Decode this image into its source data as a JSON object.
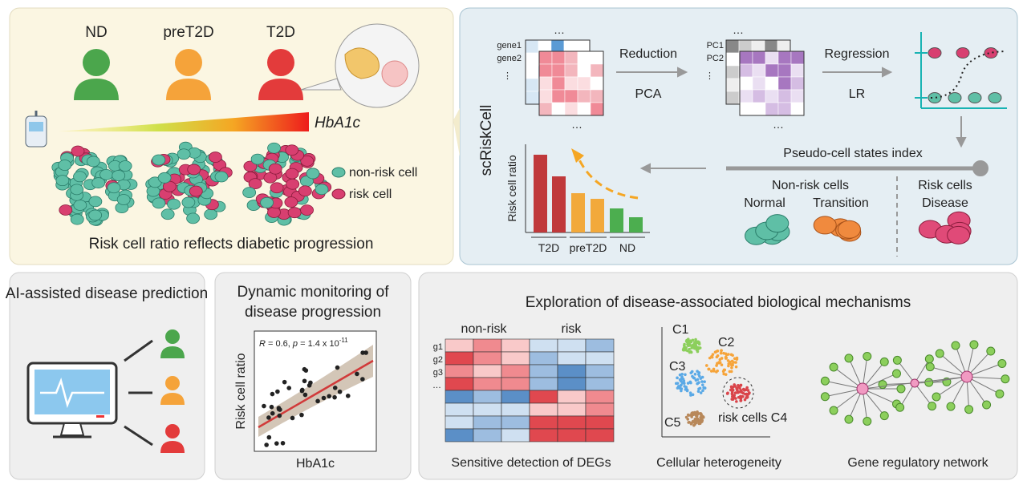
{
  "top_left": {
    "groups": [
      "ND",
      "preT2D",
      "T2D"
    ],
    "gradient_label": "HbA1c",
    "legend": [
      "non-risk cell",
      "risk cell"
    ],
    "caption": "Risk cell ratio reflects diabetic progression"
  },
  "top_right": {
    "method": "scRiskCell",
    "genes": [
      "gene1",
      "gene2",
      "⋮"
    ],
    "pcs": [
      "PC1",
      "PC2",
      "⋮"
    ],
    "ellipses": [
      "…",
      "…",
      "…",
      "…"
    ],
    "step1": [
      "Reduction",
      "PCA"
    ],
    "step2": [
      "Regression",
      "LR"
    ],
    "index_label": "Pseudo-cell states index",
    "non_risk": "Non-risk cells",
    "normal": "Normal",
    "transition": "Transition",
    "risk": "Risk cells",
    "disease": "Disease",
    "bar_ylabel": "Risk cell ratio",
    "bar_groups": [
      "T2D",
      "preT2D",
      "ND"
    ]
  },
  "panel_ai": {
    "title": "AI-assisted disease prediction"
  },
  "panel_dynamic": {
    "title": [
      "Dynamic monitoring of",
      "disease progression"
    ],
    "ylabel": "Risk cell ratio",
    "xlabel": "HbA1c",
    "stat": [
      "R",
      " = 0.6, ",
      "p",
      " = 1.4 x 10",
      "-11"
    ]
  },
  "panel_mech": {
    "title": "Exploration of disease-associated biological mechanisms",
    "heat_cols": [
      "non-risk",
      "risk"
    ],
    "heat_rows": [
      "g1",
      "g2",
      "g3",
      "…"
    ],
    "clusters": [
      "C1",
      "C2",
      "C3",
      "risk cells C4",
      "C5"
    ],
    "captions": [
      "Sensitive detection of DEGs",
      "Cellular heterogeneity",
      "Gene regulatory network"
    ]
  }
}
